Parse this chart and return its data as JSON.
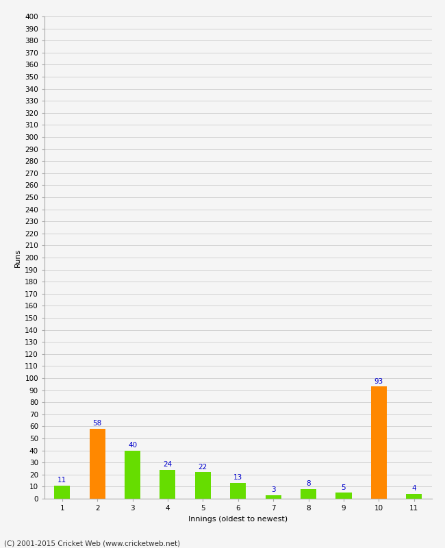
{
  "categories": [
    1,
    2,
    3,
    4,
    5,
    6,
    7,
    8,
    9,
    10,
    11
  ],
  "values": [
    11,
    58,
    40,
    24,
    22,
    13,
    3,
    8,
    5,
    93,
    4
  ],
  "bar_colors": [
    "#66dd00",
    "#ff8800",
    "#66dd00",
    "#66dd00",
    "#66dd00",
    "#66dd00",
    "#66dd00",
    "#66dd00",
    "#66dd00",
    "#ff8800",
    "#66dd00"
  ],
  "xlabel": "Innings (oldest to newest)",
  "ylabel": "Runs",
  "ylim": [
    0,
    400
  ],
  "background_color": "#f5f5f5",
  "grid_color": "#cccccc",
  "label_color": "#0000cc",
  "label_fontsize": 7.5,
  "axis_tick_fontsize": 7.5,
  "axis_label_fontsize": 8,
  "footer": "(C) 2001-2015 Cricket Web (www.cricketweb.net)",
  "footer_fontsize": 7.5,
  "bar_width": 0.45
}
